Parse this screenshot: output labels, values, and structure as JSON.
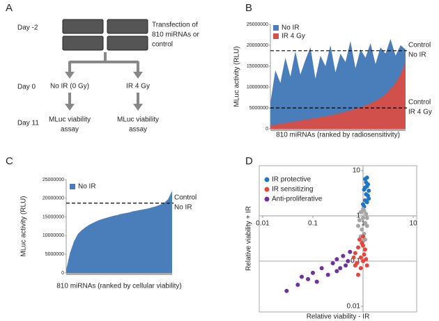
{
  "diagram": {
    "panel": "A",
    "days": [
      "Day -2",
      "Day 0",
      "Day 11"
    ],
    "transfection": [
      "Transfection of",
      "810 miRNAs or",
      "control"
    ],
    "branches": [
      {
        "condition": "No IR (0 Gy)",
        "assay": [
          "MLuc viability",
          "assay"
        ]
      },
      {
        "condition": "IR 4 Gy",
        "assay": [
          "MLuc viability",
          "assay"
        ]
      }
    ]
  },
  "chart_data": [
    {
      "type": "area",
      "panel": "B",
      "y_label": "MLuc activity (RLU)",
      "x_label": "810 miRNAs (ranked by radiosensitivity)",
      "x": [
        1,
        30,
        60,
        90,
        120,
        150,
        180,
        210,
        240,
        270,
        300,
        330,
        360,
        390,
        420,
        450,
        480,
        510,
        540,
        570,
        600,
        630,
        660,
        690,
        720,
        750,
        780,
        810
      ],
      "xlim": [
        0,
        810
      ],
      "ylim": [
        0,
        25000000
      ],
      "yticks": [
        0,
        5000000,
        10000000,
        15000000,
        20000000,
        25000000
      ],
      "series": [
        {
          "name": "No IR",
          "color": "#4a7ebb",
          "values": [
            6500000,
            14000000,
            11000000,
            17000000,
            12500000,
            18500000,
            13000000,
            16500000,
            19500000,
            12000000,
            17500000,
            15000000,
            20000000,
            13500000,
            18000000,
            16000000,
            21000000,
            14500000,
            19000000,
            17000000,
            20500000,
            15500000,
            19500000,
            18000000,
            21500000,
            17500000,
            20000000,
            19000000
          ]
        },
        {
          "name": "IR 4 Gy",
          "color": "#d2504b",
          "values": [
            800000,
            1000000,
            1200000,
            1400000,
            1600000,
            1800000,
            2000000,
            2200000,
            2400000,
            2600000,
            2800000,
            3000000,
            3200000,
            3500000,
            3800000,
            4100000,
            4400000,
            4800000,
            5200000,
            5600000,
            6100000,
            6700000,
            7400000,
            8300000,
            9500000,
            11000000,
            13000000,
            16000000
          ]
        }
      ],
      "ref_lines": [
        {
          "value": 18700000,
          "label": [
            "Control",
            "No IR"
          ]
        },
        {
          "value": 5000000,
          "label": [
            "Control",
            "IR 4 Gy"
          ]
        }
      ]
    },
    {
      "type": "area",
      "panel": "C",
      "y_label": "MLuc activity (RLU)",
      "x_label": "810 miRNAs (ranked by cellular viability)",
      "x": [
        1,
        30,
        60,
        90,
        120,
        150,
        180,
        210,
        240,
        270,
        300,
        330,
        360,
        390,
        420,
        450,
        480,
        510,
        540,
        570,
        600,
        630,
        660,
        690,
        720,
        750,
        780,
        810
      ],
      "xlim": [
        0,
        810
      ],
      "ylim": [
        0,
        25000000
      ],
      "yticks": [
        0,
        5000000,
        10000000,
        15000000,
        20000000,
        25000000
      ],
      "series": [
        {
          "name": "No IR",
          "color": "#4a7ebb",
          "values": [
            1000000,
            5500000,
            8500000,
            10500000,
            11500000,
            12300000,
            13000000,
            13500000,
            14000000,
            14400000,
            14700000,
            15000000,
            15300000,
            15500000,
            15800000,
            16000000,
            16200000,
            16500000,
            16700000,
            16900000,
            17100000,
            17300000,
            17600000,
            17900000,
            18300000,
            18800000,
            19800000,
            22000000
          ]
        }
      ],
      "ref_lines": [
        {
          "value": 18700000,
          "label": [
            "Control",
            "No IR"
          ]
        }
      ]
    },
    {
      "type": "scatter",
      "panel": "D",
      "x_label": "Relative viability - IR",
      "y_label": "Relative viability + IR",
      "log_x": true,
      "log_y": true,
      "xlim": [
        0.01,
        10
      ],
      "ylim": [
        0.01,
        10
      ],
      "xticks": [
        0.01,
        0.1,
        1,
        10
      ],
      "yticks": [
        0.01,
        0.1,
        1,
        10
      ],
      "ref_y": 0.1,
      "series": [
        {
          "name": "IR protective",
          "color": "#1f77c4",
          "x": [
            1.05,
            1.1,
            1.15,
            1.2,
            1.1,
            1.25,
            1.3,
            1.0,
            1.2,
            1.15,
            1.05,
            1.3,
            1.1,
            1.25,
            1.2
          ],
          "values": [
            1.6,
            2.2,
            3,
            4.5,
            6.5,
            2.8,
            3.6,
            1.8,
            2.0,
            5.5,
            3.8,
            2.4,
            4.2,
            5.0,
            7.0
          ]
        },
        {
          "name": null,
          "color": "#a6a6a6",
          "x": [
            0.9,
            1.0,
            1.1,
            0.95,
            1.05,
            1.2,
            0.85,
            1.0,
            1.15,
            0.9,
            1.1,
            1.0,
            1.2,
            0.8,
            1.05
          ],
          "values": [
            1.2,
            0.9,
            0.7,
            0.5,
            0.4,
            0.6,
            0.8,
            1.4,
            1.1,
            0.35,
            0.3,
            0.28,
            0.9,
            0.6,
            1.3
          ]
        },
        {
          "name": "IR sensitizing",
          "color": "#e8463c",
          "x": [
            0.7,
            0.8,
            0.9,
            1.0,
            1.1,
            0.75,
            0.95,
            1.2,
            0.85,
            1.0,
            0.65,
            1.05,
            0.9,
            1.15,
            0.8,
            0.7,
            1.0
          ],
          "values": [
            0.15,
            0.2,
            0.12,
            0.1,
            0.18,
            0.09,
            0.25,
            0.08,
            0.3,
            0.22,
            0.12,
            0.14,
            0.07,
            0.11,
            0.05,
            0.08,
            0.35
          ]
        },
        {
          "name": "Anti-proliferative",
          "color": "#7030a0",
          "x": [
            0.03,
            0.05,
            0.08,
            0.1,
            0.15,
            0.2,
            0.25,
            0.3,
            0.35,
            0.4,
            0.5,
            0.55,
            0.12,
            0.06,
            0.3,
            0.45
          ],
          "values": [
            0.022,
            0.03,
            0.04,
            0.055,
            0.07,
            0.05,
            0.09,
            0.11,
            0.07,
            0.13,
            0.1,
            0.16,
            0.035,
            0.045,
            0.06,
            0.08
          ]
        }
      ]
    }
  ]
}
